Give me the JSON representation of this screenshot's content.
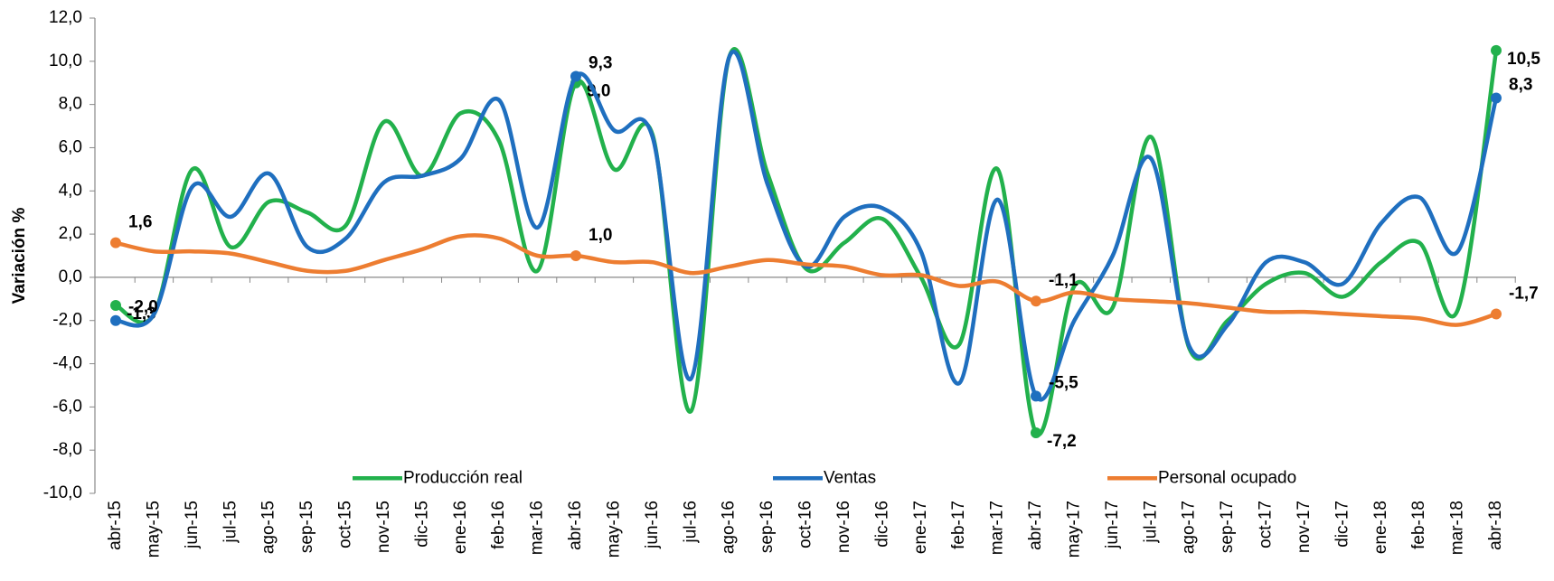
{
  "chart_data": {
    "type": "line",
    "y_label": "Variación %",
    "categories": [
      "abr-15",
      "may-15",
      "jun-15",
      "jul-15",
      "ago-15",
      "sep-15",
      "oct-15",
      "nov-15",
      "dic-15",
      "ene-16",
      "feb-16",
      "mar-16",
      "abr-16",
      "may-16",
      "jun-16",
      "jul-16",
      "ago-16",
      "sep-16",
      "oct-16",
      "nov-16",
      "dic-16",
      "ene-17",
      "feb-17",
      "mar-17",
      "abr-17",
      "may-17",
      "jun-17",
      "jul-17",
      "ago-17",
      "sep-17",
      "oct-17",
      "nov-17",
      "dic-17",
      "ene-18",
      "feb-18",
      "mar-18",
      "abr-18"
    ],
    "series": [
      {
        "name": "Producción real",
        "color": "#22b14c",
        "values": [
          -1.3,
          -1.7,
          5.0,
          1.4,
          3.5,
          3.0,
          2.4,
          7.2,
          4.7,
          7.6,
          6.3,
          0.3,
          9.0,
          5.0,
          6.6,
          -6.2,
          10.2,
          4.8,
          0.4,
          1.6,
          2.7,
          0.0,
          -3.1,
          5.0,
          -7.2,
          -0.4,
          -1.4,
          6.5,
          -3.3,
          -2.0,
          -0.3,
          0.2,
          -0.9,
          0.7,
          1.6,
          -1.5,
          10.5
        ],
        "value_labels": [
          "-1,3",
          null,
          null,
          null,
          null,
          null,
          null,
          null,
          null,
          null,
          null,
          null,
          "9,0",
          null,
          null,
          null,
          null,
          null,
          null,
          null,
          null,
          null,
          null,
          null,
          "-7,2",
          null,
          null,
          null,
          null,
          null,
          null,
          null,
          null,
          null,
          null,
          null,
          "10,5"
        ]
      },
      {
        "name": "Ventas",
        "color": "#1f6fbf",
        "values": [
          -2.0,
          -1.7,
          4.2,
          2.8,
          4.8,
          1.4,
          1.8,
          4.4,
          4.7,
          5.5,
          8.2,
          2.3,
          9.3,
          6.8,
          6.5,
          -4.7,
          10.2,
          4.3,
          0.5,
          2.8,
          3.2,
          1.2,
          -4.9,
          3.6,
          -5.5,
          -2.0,
          1.0,
          5.5,
          -3.2,
          -2.2,
          0.7,
          0.7,
          -0.3,
          2.5,
          3.7,
          1.2,
          8.3
        ],
        "value_labels": [
          "-2,0",
          null,
          null,
          null,
          null,
          null,
          null,
          null,
          null,
          null,
          null,
          null,
          "9,3",
          null,
          null,
          null,
          null,
          null,
          null,
          null,
          null,
          null,
          null,
          null,
          "-5,5",
          null,
          null,
          null,
          null,
          null,
          null,
          null,
          null,
          null,
          null,
          null,
          "8,3"
        ]
      },
      {
        "name": "Personal ocupado",
        "color": "#ed7d31",
        "values": [
          1.6,
          1.2,
          1.2,
          1.1,
          0.7,
          0.3,
          0.3,
          0.8,
          1.3,
          1.9,
          1.8,
          1.0,
          1.0,
          0.7,
          0.7,
          0.2,
          0.5,
          0.8,
          0.6,
          0.5,
          0.1,
          0.1,
          -0.4,
          -0.2,
          -1.1,
          -0.7,
          -1.0,
          -1.1,
          -1.2,
          -1.4,
          -1.6,
          -1.6,
          -1.7,
          -1.8,
          -1.9,
          -2.2,
          -1.7
        ],
        "value_labels": [
          "1,6",
          null,
          null,
          null,
          null,
          null,
          null,
          null,
          null,
          null,
          null,
          null,
          "1,0",
          null,
          null,
          null,
          null,
          null,
          null,
          null,
          null,
          null,
          null,
          null,
          "-1,1",
          null,
          null,
          null,
          null,
          null,
          null,
          null,
          null,
          null,
          null,
          null,
          "-1,7"
        ]
      }
    ],
    "ylim": [
      -10,
      12
    ],
    "yticks": [
      {
        "value": -10,
        "label": "-10,0"
      },
      {
        "value": -8,
        "label": "-8,0"
      },
      {
        "value": -6,
        "label": "-6,0"
      },
      {
        "value": -4,
        "label": "-4,0"
      },
      {
        "value": -2,
        "label": "-2,0"
      },
      {
        "value": 0,
        "label": "0,0"
      },
      {
        "value": 2,
        "label": "2,0"
      },
      {
        "value": 4,
        "label": "4,0"
      },
      {
        "value": 6,
        "label": "6,0"
      },
      {
        "value": 8,
        "label": "8,0"
      },
      {
        "value": 10,
        "label": "10,0"
      },
      {
        "value": 12,
        "label": "12,0"
      }
    ],
    "grid": false,
    "legend": "bottom"
  }
}
